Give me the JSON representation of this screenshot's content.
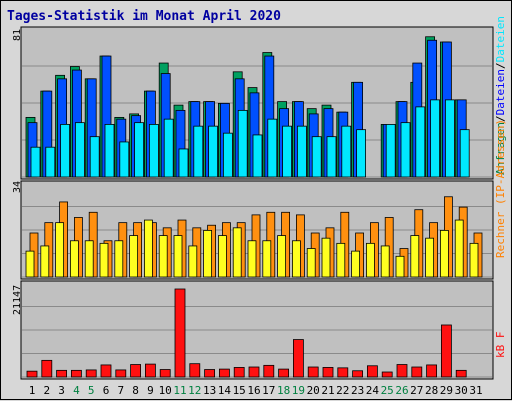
{
  "title": "Tages-Statistik im Monat April 2020",
  "colors": {
    "title": "#0000a0",
    "panel_bg": "#c0c0c0",
    "grid": "#8a8a8a",
    "day_normal": "#000000",
    "day_weekend": "#008040",
    "anfragen": "#00a060",
    "dateien": "#0050ff",
    "seiten": "#00e8ff",
    "rechner": "#ff9010",
    "besuche": "#ffff20",
    "kb": "#ff1010",
    "legend_rechner": "#ff8000",
    "legend_ip": "#ff8000",
    "legend_dateien": "#0000ff",
    "legend_anfragen": "#008040"
  },
  "legends": {
    "top": [
      {
        "text": "Anfragen",
        "color_key": "legend_anfragen"
      },
      {
        "text": "/",
        "color_key": "day_normal"
      },
      {
        "text": "Dateien",
        "color_key": "legend_dateien"
      },
      {
        "text": "/",
        "color_key": "day_normal"
      },
      {
        "text": "Dateien",
        "color_key": "seiten"
      }
    ],
    "middle": [
      {
        "text": "Rechner (IP-Adressen)",
        "color_key": "legend_rechner"
      }
    ],
    "bottom": [
      {
        "text": "kB F",
        "color_key": "kb"
      }
    ]
  },
  "chart_data": [
    {
      "type": "bar",
      "panel": "top",
      "ymax_label": "81",
      "ylim": [
        0,
        81
      ],
      "categories": [
        "1",
        "2",
        "3",
        "4",
        "5",
        "6",
        "7",
        "8",
        "9",
        "10",
        "11",
        "12",
        "13",
        "14",
        "15",
        "16",
        "17",
        "18",
        "19",
        "20",
        "21",
        "22",
        "23",
        "24",
        "25",
        "26",
        "27",
        "28",
        "29",
        "30",
        "31"
      ],
      "weekend_days": [
        "4",
        "5",
        "11",
        "12",
        "18",
        "19",
        "25",
        "26"
      ],
      "series": [
        {
          "color_key": "anfragen",
          "values": [
            34,
            49,
            58,
            63,
            56,
            69,
            34,
            36,
            49,
            65,
            41,
            43,
            43,
            42,
            60,
            51,
            71,
            43,
            43,
            39,
            41,
            37,
            54,
            0,
            30,
            43,
            54,
            80,
            77,
            44,
            0
          ]
        },
        {
          "color_key": "dateien",
          "values": [
            31,
            49,
            56,
            61,
            56,
            69,
            33,
            35,
            49,
            59,
            38,
            43,
            43,
            42,
            56,
            48,
            69,
            39,
            43,
            36,
            39,
            37,
            54,
            0,
            30,
            43,
            65,
            78,
            77,
            44,
            0
          ]
        },
        {
          "color_key": "seiten",
          "values": [
            17,
            17,
            30,
            31,
            23,
            30,
            20,
            31,
            30,
            33,
            16,
            29,
            29,
            25,
            38,
            24,
            33,
            29,
            29,
            23,
            23,
            29,
            27,
            0,
            30,
            31,
            40,
            44,
            44,
            27,
            0
          ]
        }
      ]
    },
    {
      "type": "bar",
      "panel": "middle",
      "ymax_label": "34",
      "ylim": [
        0,
        34
      ],
      "series": [
        {
          "color_key": "rechner",
          "values": [
            17,
            21,
            29,
            23,
            25,
            14,
            21,
            21,
            21,
            19,
            22,
            19,
            20,
            21,
            21,
            24,
            25,
            25,
            24,
            17,
            19,
            25,
            17,
            21,
            23,
            11,
            26,
            21,
            31,
            27,
            17
          ]
        },
        {
          "color_key": "besuche",
          "values": [
            10,
            12,
            21,
            14,
            14,
            13,
            14,
            16,
            22,
            16,
            16,
            12,
            18,
            16,
            19,
            14,
            14,
            16,
            14,
            11,
            15,
            13,
            10,
            13,
            12,
            8,
            16,
            15,
            18,
            22,
            13
          ]
        }
      ]
    },
    {
      "type": "bar",
      "panel": "bottom",
      "ymax_label": "21147",
      "ylim": [
        0,
        21147
      ],
      "series": [
        {
          "color_key": "kb",
          "values": [
            1400,
            4000,
            1600,
            1600,
            1700,
            2900,
            1700,
            3000,
            3100,
            1800,
            21147,
            3200,
            1800,
            1900,
            2300,
            2400,
            2800,
            1900,
            9000,
            2400,
            2300,
            2200,
            1500,
            2700,
            1200,
            3000,
            2400,
            2900,
            12500,
            1600,
            0
          ]
        }
      ]
    }
  ]
}
